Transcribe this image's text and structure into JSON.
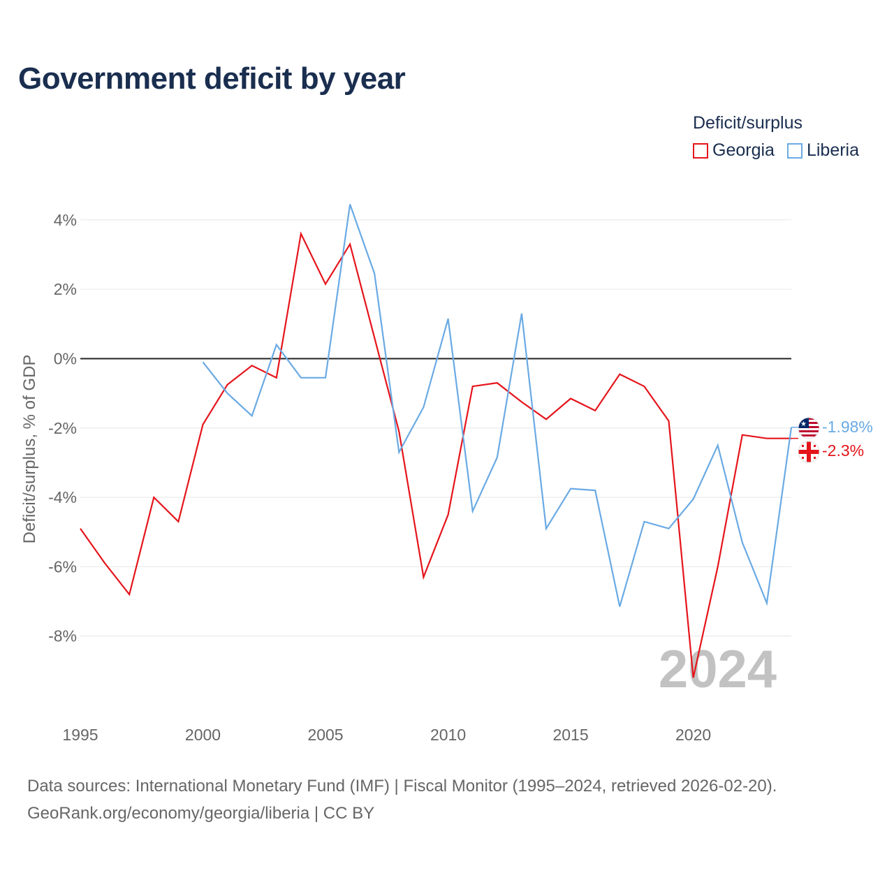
{
  "title": "Government deficit by year",
  "legend": {
    "title": "Deficit/surplus",
    "items": [
      {
        "name": "Georgia",
        "color": "#e5141b"
      },
      {
        "name": "Liberia",
        "color": "#6aaae4"
      }
    ]
  },
  "year_label": "2024",
  "footer": {
    "line1": "Data sources: International Monetary Fund (IMF) | Fiscal Monitor (1995–2024, retrieved 2026-02-20).",
    "line2": "GeoRank.org/economy/georgia/liberia | CC BY"
  },
  "chart_data": {
    "type": "line",
    "title": "Government deficit by year",
    "xlabel": "",
    "ylabel": "Deficit/surplus, % of GDP",
    "xlim": [
      1995,
      2024
    ],
    "ylim": [
      -10,
      4.5
    ],
    "grid": true,
    "legend_position": "top-right",
    "x_ticks": [
      1995,
      2000,
      2005,
      2010,
      2015,
      2020
    ],
    "x_tick_labels": [
      "1995",
      "2000",
      "2005",
      "2010",
      "2015",
      "2020"
    ],
    "y_ticks": [
      4,
      2,
      0,
      -2,
      -4,
      -6,
      -8
    ],
    "y_tick_labels": [
      "4%",
      "2%",
      "0%",
      "-2%",
      "-4%",
      "-6%",
      "-8%"
    ],
    "series": [
      {
        "name": "Georgia",
        "color": "#e5141b",
        "x": [
          1995,
          1996,
          1997,
          1998,
          1999,
          2000,
          2001,
          2002,
          2003,
          2004,
          2005,
          2006,
          2007,
          2008,
          2009,
          2010,
          2011,
          2012,
          2013,
          2014,
          2015,
          2016,
          2017,
          2018,
          2019,
          2020,
          2021,
          2022,
          2023,
          2024
        ],
        "values": [
          -4.9,
          -5.9,
          -6.8,
          -4.0,
          -4.7,
          -1.9,
          -0.75,
          -0.2,
          -0.55,
          3.6,
          2.15,
          3.3,
          0.6,
          -2.1,
          -6.3,
          -4.5,
          -0.8,
          -0.7,
          -1.25,
          -1.75,
          -1.15,
          -1.5,
          -0.45,
          -0.8,
          -1.8,
          -9.2,
          -6.0,
          -2.2,
          -2.3,
          -2.3
        ],
        "end_label": "-2.3%"
      },
      {
        "name": "Liberia",
        "color": "#6aaae4",
        "x": [
          2000,
          2001,
          2002,
          2003,
          2004,
          2005,
          2006,
          2007,
          2008,
          2009,
          2010,
          2011,
          2012,
          2013,
          2014,
          2015,
          2016,
          2017,
          2018,
          2019,
          2020,
          2021,
          2022,
          2023,
          2024
        ],
        "values": [
          -0.1,
          -1.0,
          -1.65,
          0.4,
          -0.55,
          -0.55,
          4.45,
          2.45,
          -2.7,
          -1.4,
          1.15,
          -4.4,
          -2.85,
          1.3,
          -4.9,
          -3.75,
          -3.8,
          -7.15,
          -4.7,
          -4.9,
          -4.05,
          -2.5,
          -5.3,
          -7.05,
          -1.98
        ],
        "end_label": "-1.98%"
      }
    ]
  }
}
